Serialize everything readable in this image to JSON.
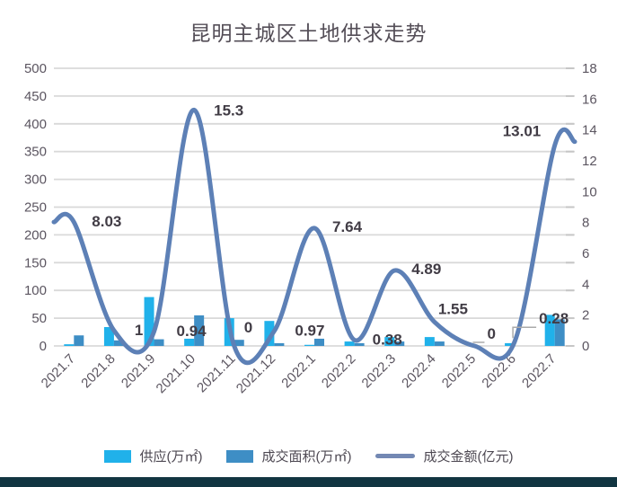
{
  "title": "昆明主城区土地供求走势",
  "legend": {
    "supply_label": "供应(万㎡)",
    "deal_area_label": "成交面积(万㎡)",
    "amount_label": "成交金额(亿元)"
  },
  "colors": {
    "background": "#ffffff",
    "title_text": "#544e57",
    "axis_text": "#5b5560",
    "data_label_text": "#413c45",
    "grid": "#d9d9d9",
    "tick": "#c6c6c6",
    "leader": "#aaaaaa",
    "supply_bar": "#20b1ea",
    "deal_area_bar": "#3e8ec5",
    "amount_line": "#5d80b6",
    "legend_line_swatch": "#7388b3",
    "footer_band": "#113541"
  },
  "chart_data": {
    "type": "combo-bar-line",
    "title": "昆明主城区土地供求走势",
    "categories": [
      "2021.7",
      "2021.8",
      "2021.9",
      "2021.10",
      "2021.11",
      "2021.12",
      "2022.1",
      "2022.2",
      "2022.3",
      "2022.4",
      "2022.5",
      "2022.6",
      "2022.7"
    ],
    "series": [
      {
        "name": "供应(万㎡)",
        "type": "bar",
        "axis": "left",
        "values": [
          3,
          34,
          88,
          13,
          50,
          45,
          2,
          8,
          16,
          16,
          0,
          5,
          56
        ]
      },
      {
        "name": "成交面积(万㎡)",
        "type": "bar",
        "axis": "left",
        "values": [
          19,
          10,
          12,
          55,
          11,
          5,
          13,
          5,
          8,
          8,
          0,
          0,
          48
        ]
      },
      {
        "name": "成交金额(亿元)",
        "type": "line",
        "axis": "right",
        "smooth": true,
        "values": [
          8.03,
          1,
          0.94,
          15.3,
          0,
          0.97,
          7.64,
          0.38,
          4.89,
          1.55,
          0,
          0.28,
          13.01
        ],
        "point_labels": [
          "8.03",
          "1",
          "0.94",
          "15.3",
          "0",
          "0.97",
          "7.64",
          "0.38",
          "4.89",
          "1.55",
          "0",
          "0.28",
          "13.01"
        ]
      }
    ],
    "axes": {
      "left": {
        "min": 0,
        "max": 500,
        "step": 50,
        "ticks": [
          "500",
          "450",
          "400",
          "350",
          "300",
          "250",
          "200",
          "150",
          "100",
          "50",
          "0"
        ]
      },
      "right": {
        "min": 0,
        "max": 18,
        "step": 2,
        "ticks": [
          "18",
          "16",
          "14",
          "12",
          "10",
          "8",
          "6",
          "4",
          "2",
          "0"
        ]
      }
    },
    "grid": true,
    "legend_position": "bottom",
    "x_label_rotation_deg": -45,
    "label_offsets": [
      [
        20,
        5,
        0
      ],
      [
        23,
        5,
        0
      ],
      [
        25,
        5,
        0
      ],
      [
        22,
        6,
        0
      ],
      [
        11,
        -15,
        0
      ],
      [
        23,
        5,
        0
      ],
      [
        20,
        4,
        0
      ],
      [
        20,
        5,
        0
      ],
      [
        19,
        4,
        0
      ],
      [
        4,
        -9,
        0
      ],
      [
        14,
        -8,
        1
      ],
      [
        27,
        -20,
        1
      ],
      [
        -58,
        -10,
        0
      ]
    ]
  }
}
